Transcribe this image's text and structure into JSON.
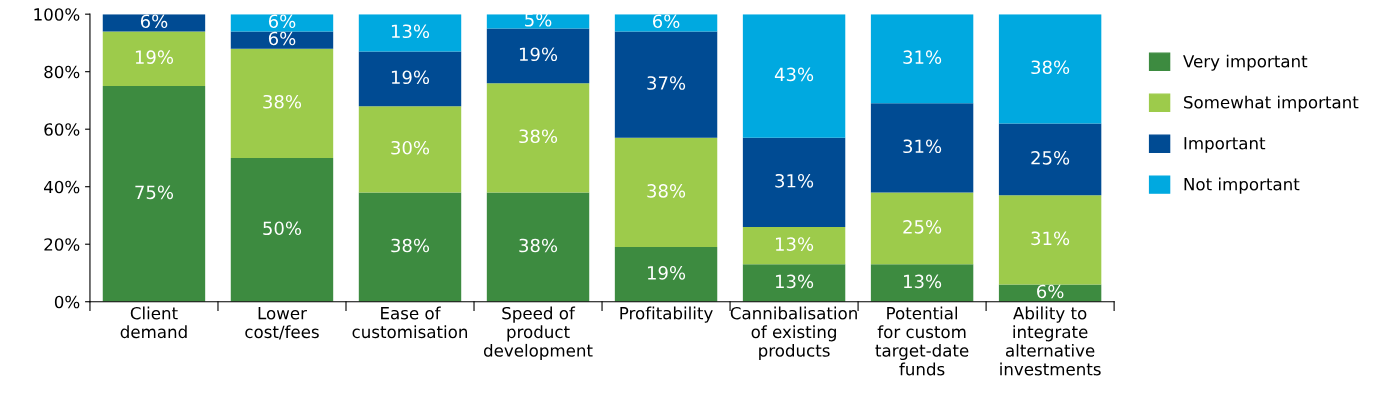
{
  "chart_data": {
    "type": "bar",
    "stacked": true,
    "categories": [
      "Client\ndemand",
      "Lower\ncost/fees",
      "Ease of\ncustomisation",
      "Speed of\nproduct\ndevelopment",
      "Profitability",
      "Cannibalisation\nof existing\nproducts",
      "Potential\nfor custom\ntarget-date\nfunds",
      "Ability to\nintegrate\nalternative\ninvestments"
    ],
    "series": [
      {
        "name": "Very important",
        "color": "#3d8b40",
        "values": [
          75,
          50,
          38,
          38,
          19,
          13,
          13,
          6
        ],
        "value_labels": [
          "75%",
          "50%",
          "38%",
          "38%",
          "19%",
          "13%",
          "13%",
          "6%"
        ]
      },
      {
        "name": "Somewhat important",
        "color": "#9dcb4b",
        "values": [
          19,
          38,
          30,
          38,
          38,
          13,
          25,
          31
        ],
        "value_labels": [
          "19%",
          "38%",
          "30%",
          "38%",
          "38%",
          "13%",
          "25%",
          "31%"
        ]
      },
      {
        "name": "Important",
        "color": "#004b93",
        "values": [
          6,
          6,
          19,
          19,
          37,
          31,
          31,
          25
        ],
        "value_labels": [
          "6%",
          "6%",
          "19%",
          "19%",
          "37%",
          "31%",
          "31%",
          "25%"
        ]
      },
      {
        "name": "Not important",
        "color": "#00a9e0",
        "values": [
          0,
          6,
          13,
          5,
          6,
          43,
          31,
          38
        ],
        "value_labels": [
          null,
          "6%",
          "13%",
          "5%",
          "6%",
          "43%",
          "31%",
          "38%"
        ]
      }
    ],
    "ylim": [
      0,
      100
    ],
    "yticks": [
      {
        "value": 0,
        "label": "0%"
      },
      {
        "value": 20,
        "label": "20%"
      },
      {
        "value": 40,
        "label": "40%"
      },
      {
        "value": 60,
        "label": "60%"
      },
      {
        "value": 80,
        "label": "80%"
      },
      {
        "value": 100,
        "label": "100%"
      }
    ],
    "grid": false,
    "legend": "right"
  }
}
